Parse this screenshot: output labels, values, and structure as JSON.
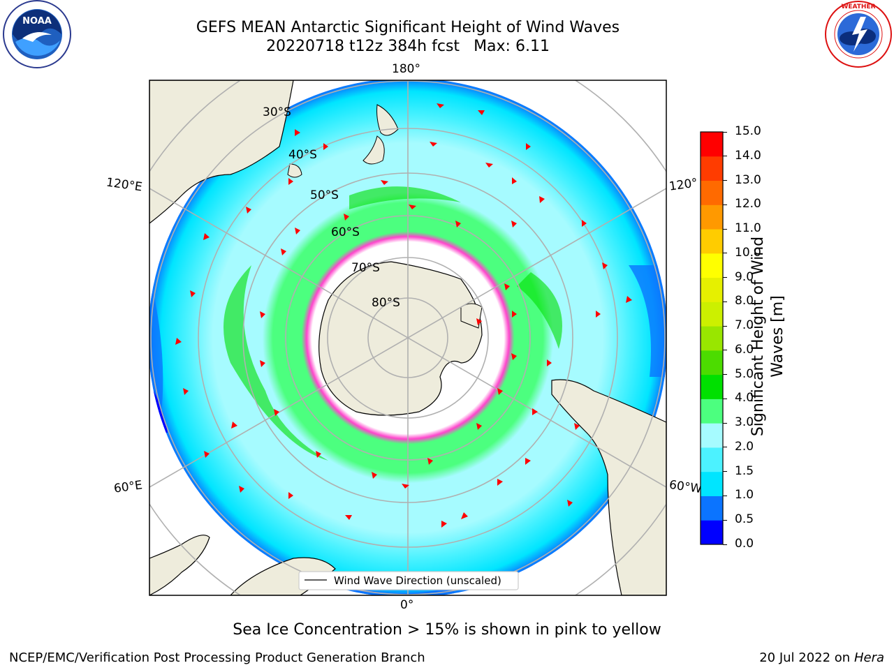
{
  "header": {
    "title_line1": "GEFS MEAN Antarctic Significant Height of Wind Waves",
    "run": "20220718 t12z 384h fcst",
    "max": "Max: 6.11"
  },
  "logos": {
    "left": "NOAA",
    "left_ring_text": "NATIONAL OCEANIC AND ATMOSPHERIC ADMINISTRATION · U.S. DEPARTMENT OF COMMERCE",
    "right_ring_text": "NATIONAL WEATHER SERVICE"
  },
  "map": {
    "projection": "South Polar Stereographic",
    "lon_labels": {
      "top": "180°",
      "bottom": "0°",
      "left_upper": "120°E",
      "left_lower": "60°E",
      "right_upper": "120°",
      "right_lower": "60°W"
    },
    "lat_labels": [
      "30°S",
      "40°S",
      "50°S",
      "60°S",
      "70°S",
      "80°S"
    ],
    "legend": "Wind Wave Direction (unscaled)"
  },
  "colorbar": {
    "label_line1": "Significant Height of Wind",
    "label_line2": "Waves [m]",
    "ticks": [
      "0.0",
      "0.5",
      "1.0",
      "1.5",
      "2.0",
      "3.0",
      "4.0",
      "5.0",
      "6.0",
      "7.0",
      "8.0",
      "9.0",
      "10.0",
      "11.0",
      "12.0",
      "13.0",
      "14.0",
      "15.0"
    ],
    "colors": [
      "#0000ff",
      "#0b74ff",
      "#00e5ff",
      "#4cf2ff",
      "#a6fbff",
      "#4cff7f",
      "#00e000",
      "#4cdc00",
      "#99e600",
      "#ccf000",
      "#e6f000",
      "#ffff00",
      "#ffcc00",
      "#ff9900",
      "#ff6a00",
      "#ff3c00",
      "#ff0000"
    ]
  },
  "caption": "Sea Ice Concentration > 15% is shown in pink to yellow",
  "footer": {
    "left": "NCEP/EMC/Verification Post Processing Product Generation Branch",
    "right_date": "20 Jul 2022 on ",
    "right_host": "Hera"
  }
}
